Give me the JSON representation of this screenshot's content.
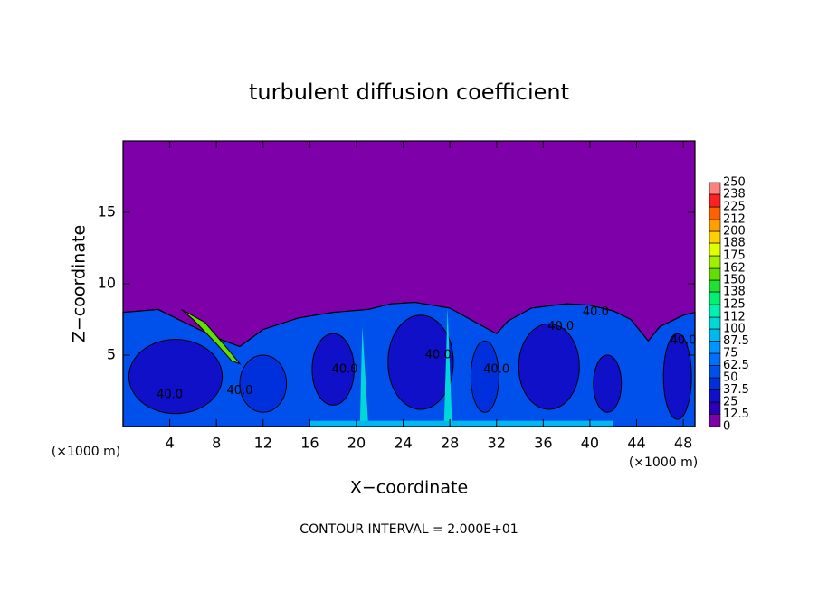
{
  "chart_data": {
    "type": "contour",
    "title": "turbulent diffusion coefficient",
    "x_label": "X−coordinate",
    "y_label": "Z−coordinate",
    "x_unit_left": "(×1000 m)",
    "x_unit_right": "(×1000 m)",
    "footnote": "CONTOUR INTERVAL = 2.000E+01",
    "xlim": [
      0,
      49
    ],
    "xticks": [
      4,
      8,
      12,
      16,
      20,
      24,
      28,
      32,
      36,
      40,
      44,
      48
    ],
    "ylim": [
      0,
      20
    ],
    "yticks": [
      5,
      10,
      15
    ],
    "contour_labels": [
      "40.0",
      "40.0",
      "40.0",
      "40.0",
      "40.0",
      "40.0",
      "40.0",
      "40.0"
    ],
    "colorbar": {
      "levels": [
        0,
        12.5,
        25,
        37.5,
        50,
        62.5,
        75,
        87.5,
        100,
        112,
        125,
        138,
        150,
        162,
        175,
        188,
        200,
        212,
        225,
        238,
        250
      ],
      "colors": [
        "#7d00a8",
        "#2a00b4",
        "#1010c8",
        "#0030dc",
        "#0050ec",
        "#0070fa",
        "#0094ff",
        "#00b8f0",
        "#00d8d8",
        "#00f0b0",
        "#00f070",
        "#20e030",
        "#60e000",
        "#a0f000",
        "#e0ff00",
        "#ffd000",
        "#ffa000",
        "#ff6000",
        "#ff2020",
        "#ff8080"
      ]
    }
  }
}
